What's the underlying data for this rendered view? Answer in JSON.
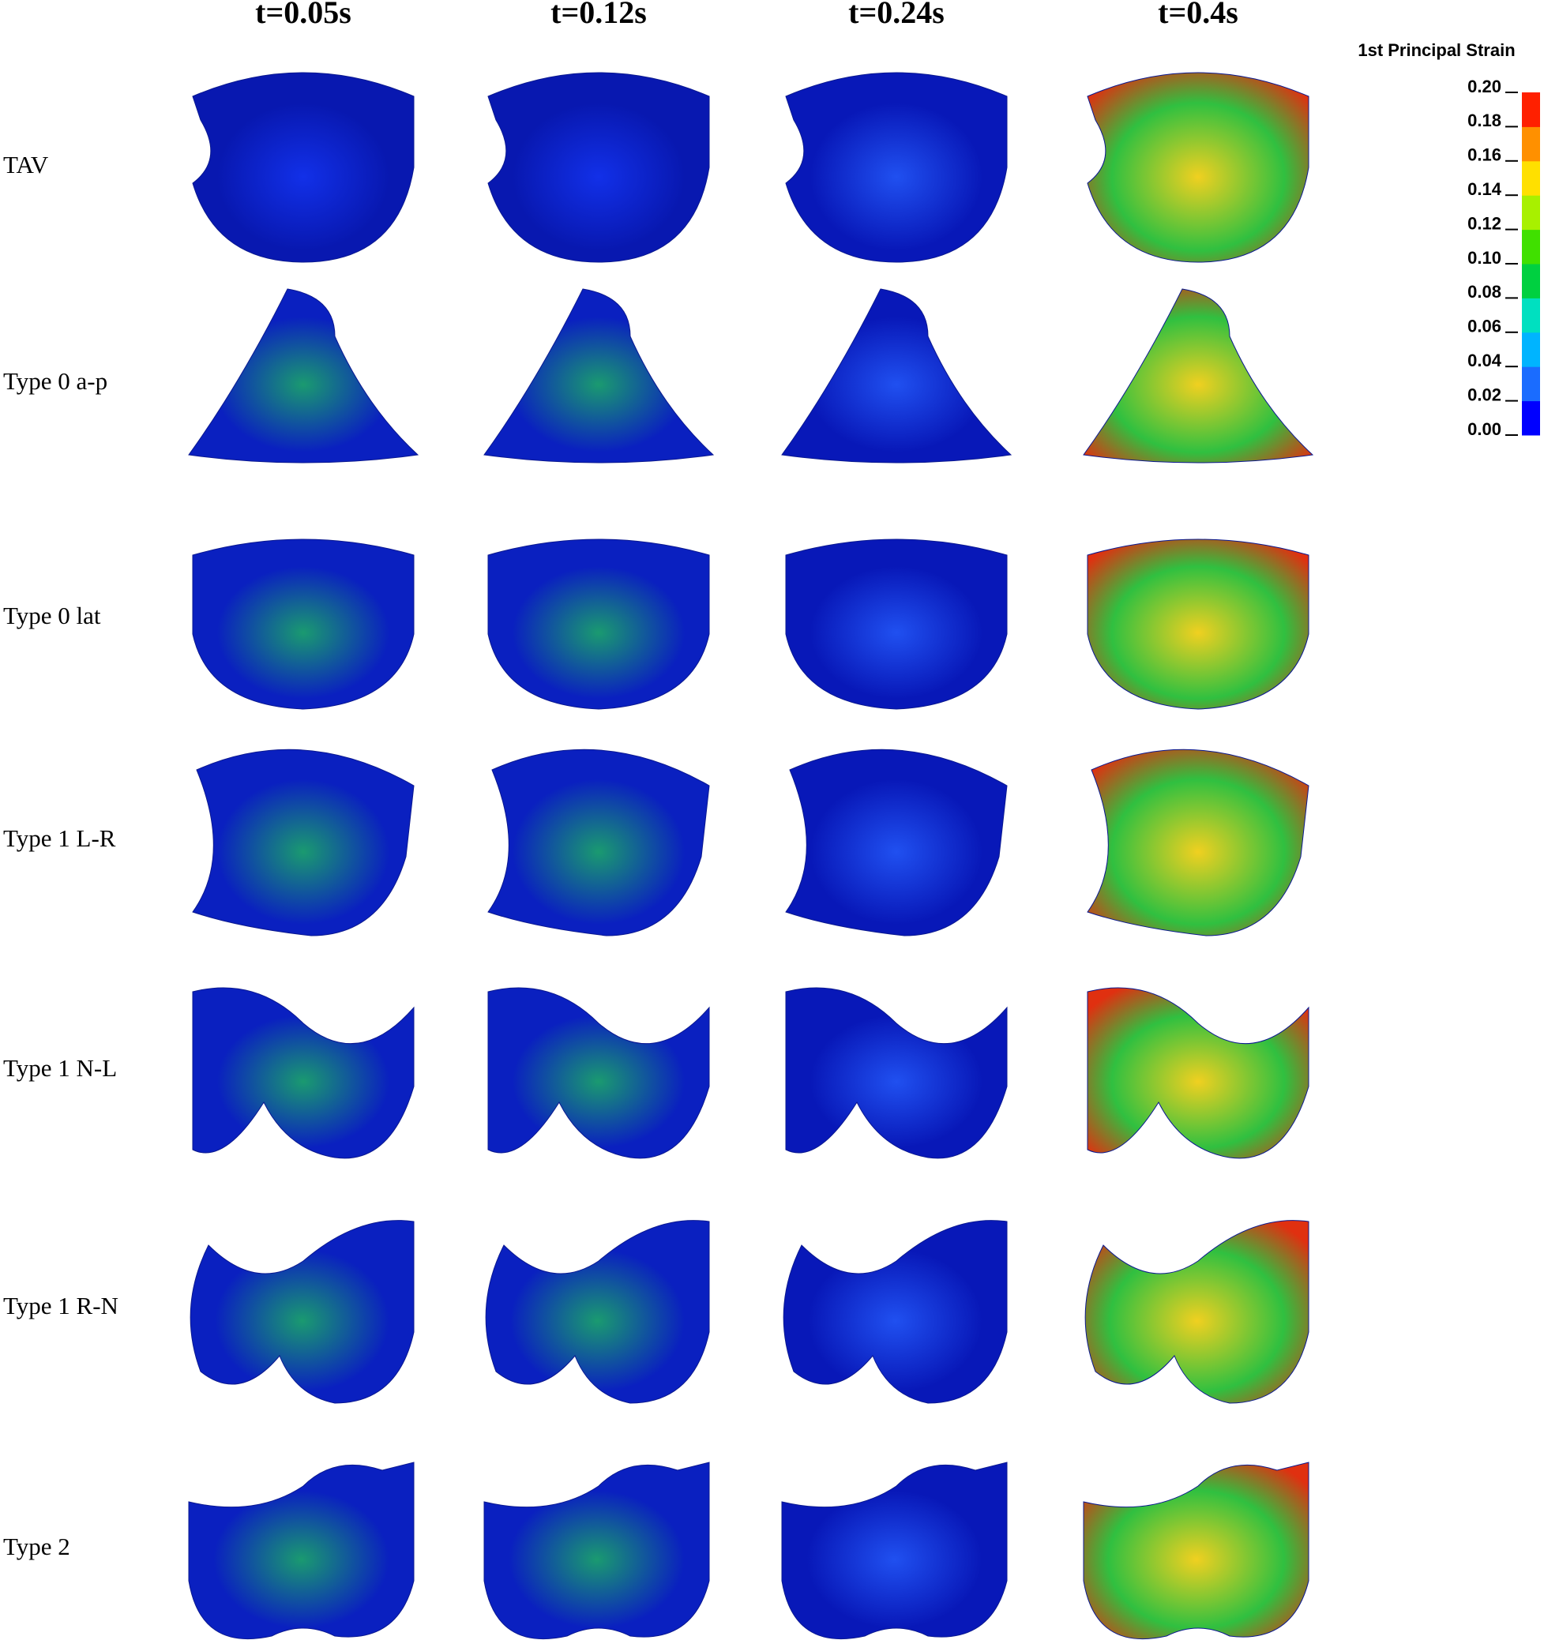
{
  "columns": [
    "t=0.05s",
    "t=0.12s",
    "t=0.24s",
    "t=0.4s"
  ],
  "rows": [
    "TAV",
    "Type 0 a-p",
    "Type 0 lat",
    "Type 1 L-R",
    "Type 1 N-L",
    "Type 1 R-N",
    "Type 2"
  ],
  "colorbar": {
    "title": "1st Principal Strain",
    "range": [
      0,
      0.2
    ],
    "ticks": [
      {
        "value": 0.2,
        "label": "0.20"
      },
      {
        "value": 0.18,
        "label": "0.18"
      },
      {
        "value": 0.16,
        "label": "0.16"
      },
      {
        "value": 0.14,
        "label": "0.14"
      },
      {
        "value": 0.12,
        "label": "0.12"
      },
      {
        "value": 0.1,
        "label": "0.10"
      },
      {
        "value": 0.08,
        "label": "0.08"
      },
      {
        "value": 0.06,
        "label": "0.06"
      },
      {
        "value": 0.04,
        "label": "0.04"
      },
      {
        "value": 0.02,
        "label": "0.02"
      },
      {
        "value": 0,
        "label": "0.00"
      }
    ],
    "colors": [
      "#0000ff",
      "#1a6cff",
      "#00b4ff",
      "#00e0c0",
      "#00d040",
      "#40e000",
      "#a8f000",
      "#ffe000",
      "#ff9000",
      "#ff2000"
    ]
  }
}
